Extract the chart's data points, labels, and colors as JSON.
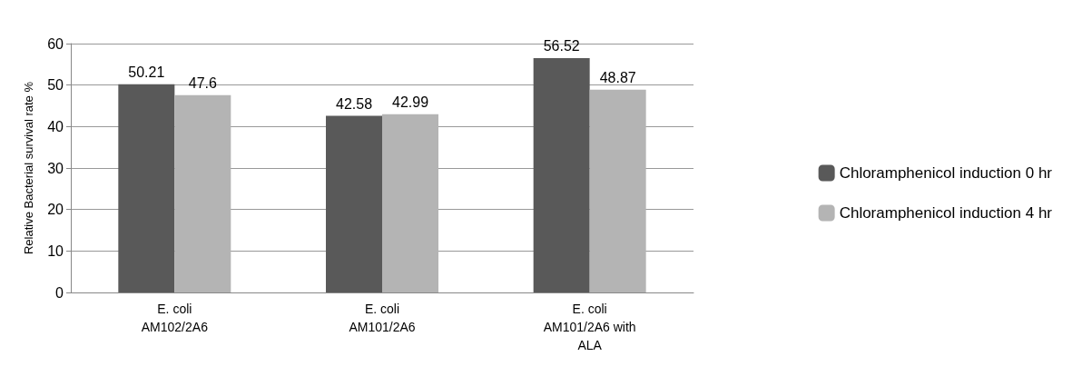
{
  "chart_data": {
    "type": "bar",
    "ylabel": "Relative Bacterial survival rate %",
    "categories": [
      "E. coli\nAM102/2A6",
      "E. coli\nAM101/2A6",
      "E. coli\nAM101/2A6 with\nALA"
    ],
    "series": [
      {
        "name": "Chloramphenicol induction 0 hr",
        "color": "#595959",
        "values": [
          50.21,
          42.58,
          56.52
        ]
      },
      {
        "name": "Chloramphenicol induction 4 hr",
        "color": "#b4b4b4",
        "values": [
          47.6,
          42.99,
          48.87
        ]
      }
    ],
    "ylim": [
      0,
      60
    ],
    "yticks": [
      0,
      10,
      20,
      30,
      40,
      50,
      60
    ],
    "grid": "y",
    "legend": "right",
    "data_labels": true
  }
}
